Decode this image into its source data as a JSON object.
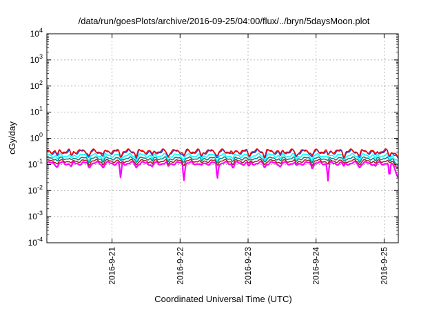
{
  "chart_data": {
    "type": "line",
    "title": "/data/run/goesPlots/archive/2016-09-25/04:00/flux/../bryn/5daysMoon.plot",
    "xlabel": "Coordinated Universal Time (UTC)",
    "ylabel": "cGy/day",
    "yscale": "log",
    "ylim": [
      0.0001,
      10000
    ],
    "xlim": [
      "2016-09-20 01:00",
      "2016-09-25 05:00"
    ],
    "grid": true,
    "legend": "none",
    "y_ticks": [
      {
        "base": "10",
        "exp": "-4",
        "value": 0.0001
      },
      {
        "base": "10",
        "exp": "-3",
        "value": 0.001
      },
      {
        "base": "10",
        "exp": "-2",
        "value": 0.01
      },
      {
        "base": "10",
        "exp": "-1",
        "value": 0.1
      },
      {
        "base": "10",
        "exp": "0",
        "value": 1
      },
      {
        "base": "10",
        "exp": "1",
        "value": 10
      },
      {
        "base": "10",
        "exp": "2",
        "value": 100
      },
      {
        "base": "10",
        "exp": "3",
        "value": 1000
      },
      {
        "base": "10",
        "exp": "4",
        "value": 10000
      }
    ],
    "x_ticks": [
      {
        "label": "2016-9-21",
        "time": "2016-09-21 00:00"
      },
      {
        "label": "2016-9-22",
        "time": "2016-09-22 00:00"
      },
      {
        "label": "2016-9-23",
        "time": "2016-09-23 00:00"
      },
      {
        "label": "2016-9-24",
        "time": "2016-09-24 00:00"
      },
      {
        "label": "2016-9-25",
        "time": "2016-09-25 00:00"
      }
    ],
    "series": [
      {
        "color": "#ff00ff",
        "base": 0.11,
        "min": 0.085,
        "max": 0.13
      },
      {
        "color": "#b22222",
        "base": 0.135,
        "min": 0.11,
        "max": 0.16
      },
      {
        "color": "#008b8b",
        "base": 0.17,
        "min": 0.14,
        "max": 0.2
      },
      {
        "color": "#00ffff",
        "base": 0.22,
        "min": 0.17,
        "max": 0.27
      },
      {
        "color": "#0055ff",
        "base": 0.3,
        "min": 0.22,
        "max": 0.38
      },
      {
        "color": "#ff0000",
        "base": 0.32,
        "min": 0.25,
        "max": 0.42
      }
    ]
  }
}
